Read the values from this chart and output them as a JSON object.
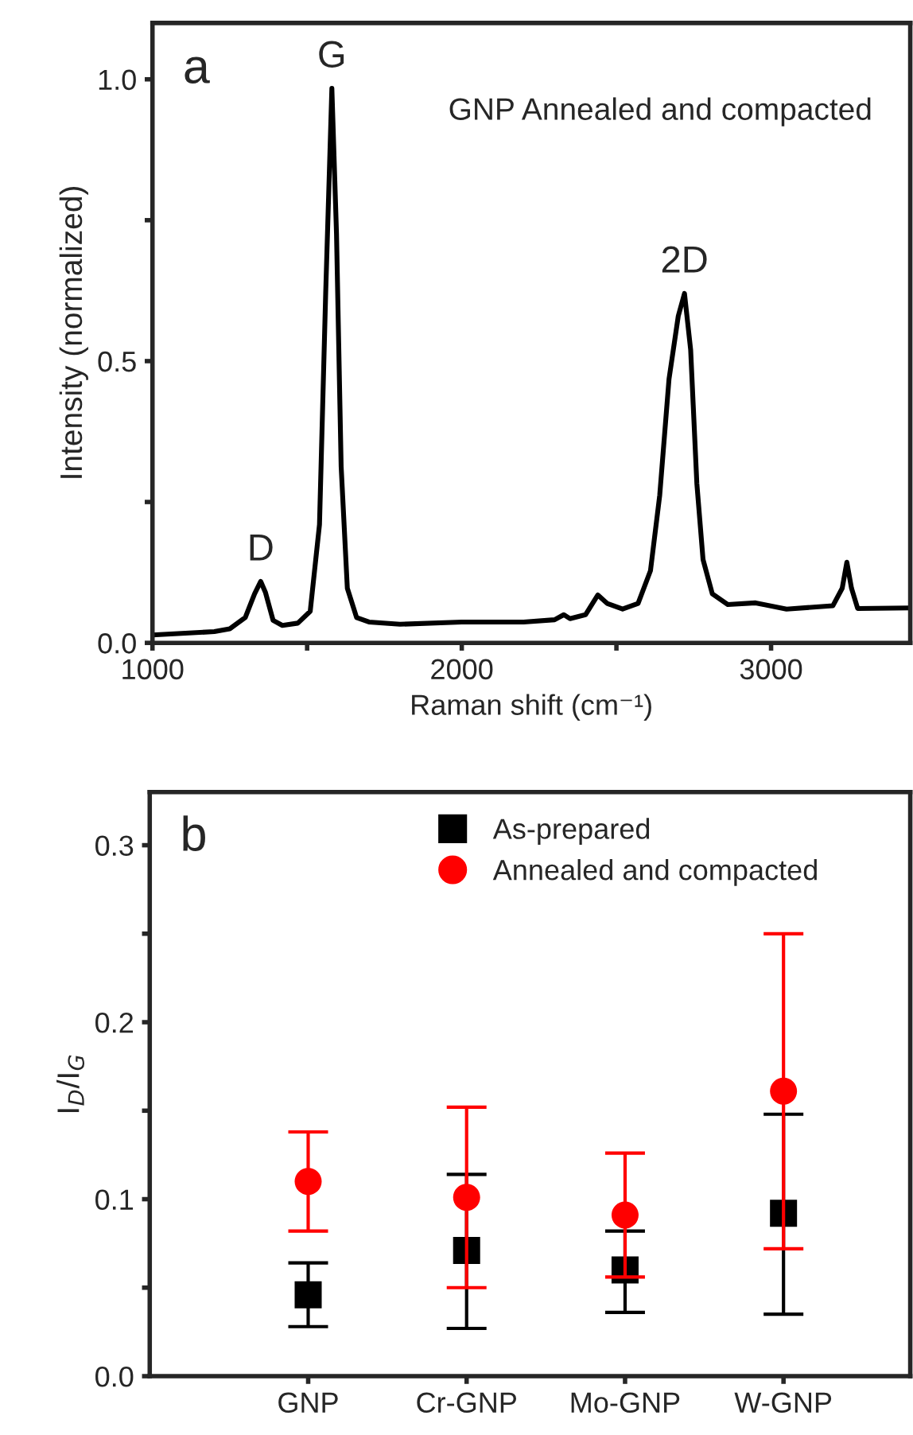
{
  "chart_data": [
    {
      "type": "line",
      "xlabel": "Raman shift (cm⁻¹)",
      "ylabel": "Intensity (normalized)",
      "annotations": [
        "a",
        "GNP Annealed and compacted",
        {
          "text": "D",
          "x": 1350,
          "y": 0.109
        },
        {
          "text": "G",
          "x": 1580,
          "y": 0.984
        },
        {
          "text": "2D",
          "x": 2720,
          "y": 0.62
        }
      ],
      "series": [
        {
          "color": "#000000",
          "x": [
            1000,
            1200,
            1250,
            1300,
            1330,
            1350,
            1365,
            1390,
            1420,
            1470,
            1510,
            1540,
            1560,
            1580,
            1595,
            1610,
            1630,
            1660,
            1700,
            1800,
            2000,
            2200,
            2300,
            2330,
            2350,
            2400,
            2440,
            2470,
            2520,
            2570,
            2610,
            2640,
            2670,
            2700,
            2720,
            2740,
            2760,
            2780,
            2810,
            2860,
            2950,
            3050,
            3200,
            3230,
            3245,
            3260,
            3280,
            3450
          ],
          "values": [
            0.014,
            0.02,
            0.025,
            0.045,
            0.087,
            0.109,
            0.09,
            0.04,
            0.031,
            0.035,
            0.056,
            0.21,
            0.62,
            0.984,
            0.726,
            0.313,
            0.097,
            0.045,
            0.037,
            0.033,
            0.037,
            0.037,
            0.041,
            0.05,
            0.043,
            0.05,
            0.085,
            0.07,
            0.06,
            0.07,
            0.128,
            0.262,
            0.468,
            0.58,
            0.62,
            0.52,
            0.283,
            0.148,
            0.087,
            0.068,
            0.071,
            0.06,
            0.066,
            0.097,
            0.143,
            0.097,
            0.061,
            0.062
          ]
        }
      ],
      "xlim": [
        1000,
        3450
      ],
      "ylim": [
        0,
        1.1
      ],
      "xticks": [
        1000,
        {
          "value": 1500,
          "label": null
        },
        2000,
        {
          "value": 2500,
          "label": null
        },
        3000
      ],
      "yticks": [
        {
          "value": 0,
          "label": "0.0"
        },
        {
          "value": 0.25,
          "label": null
        },
        {
          "value": 0.5,
          "label": "0.5"
        },
        {
          "value": 0.75,
          "label": null
        },
        {
          "value": 1,
          "label": "1.0"
        }
      ],
      "line_style": "solid",
      "marker": "none",
      "grid": false
    },
    {
      "type": "scatter",
      "ylabel": "I$_{D}$/I$_{G}$",
      "annotations": [
        "b"
      ],
      "categories": [
        "GNP",
        "Cr-GNP",
        "Mo-GNP",
        "W-GNP"
      ],
      "series": [
        {
          "name": "As-prepared",
          "color": "#000000",
          "marker": "square",
          "values": [
            0.046,
            0.071,
            0.06,
            0.092
          ],
          "errors": [
            [
              0.028,
              0.064
            ],
            [
              0.027,
              0.114
            ],
            [
              0.036,
              0.082
            ],
            [
              0.035,
              0.148
            ]
          ]
        },
        {
          "name": "Annealed and compacted",
          "color": "#ff0000",
          "marker": "circle",
          "values": [
            0.11,
            0.101,
            0.091,
            0.161
          ],
          "errors": [
            [
              0.082,
              0.138
            ],
            [
              0.05,
              0.152
            ],
            [
              0.056,
              0.126
            ],
            [
              0.072,
              0.25
            ]
          ]
        }
      ],
      "ylim": [
        0,
        0.33
      ],
      "yticks": [
        {
          "value": 0,
          "label": "0.0"
        },
        {
          "value": 0.05,
          "label": null
        },
        {
          "value": 0.1,
          "label": "0.1"
        },
        {
          "value": 0.15,
          "label": null
        },
        {
          "value": 0.2,
          "label": "0.2"
        },
        {
          "value": 0.25,
          "label": null
        },
        {
          "value": 0.3,
          "label": "0.3"
        }
      ],
      "grid": false,
      "legend": "top"
    }
  ]
}
